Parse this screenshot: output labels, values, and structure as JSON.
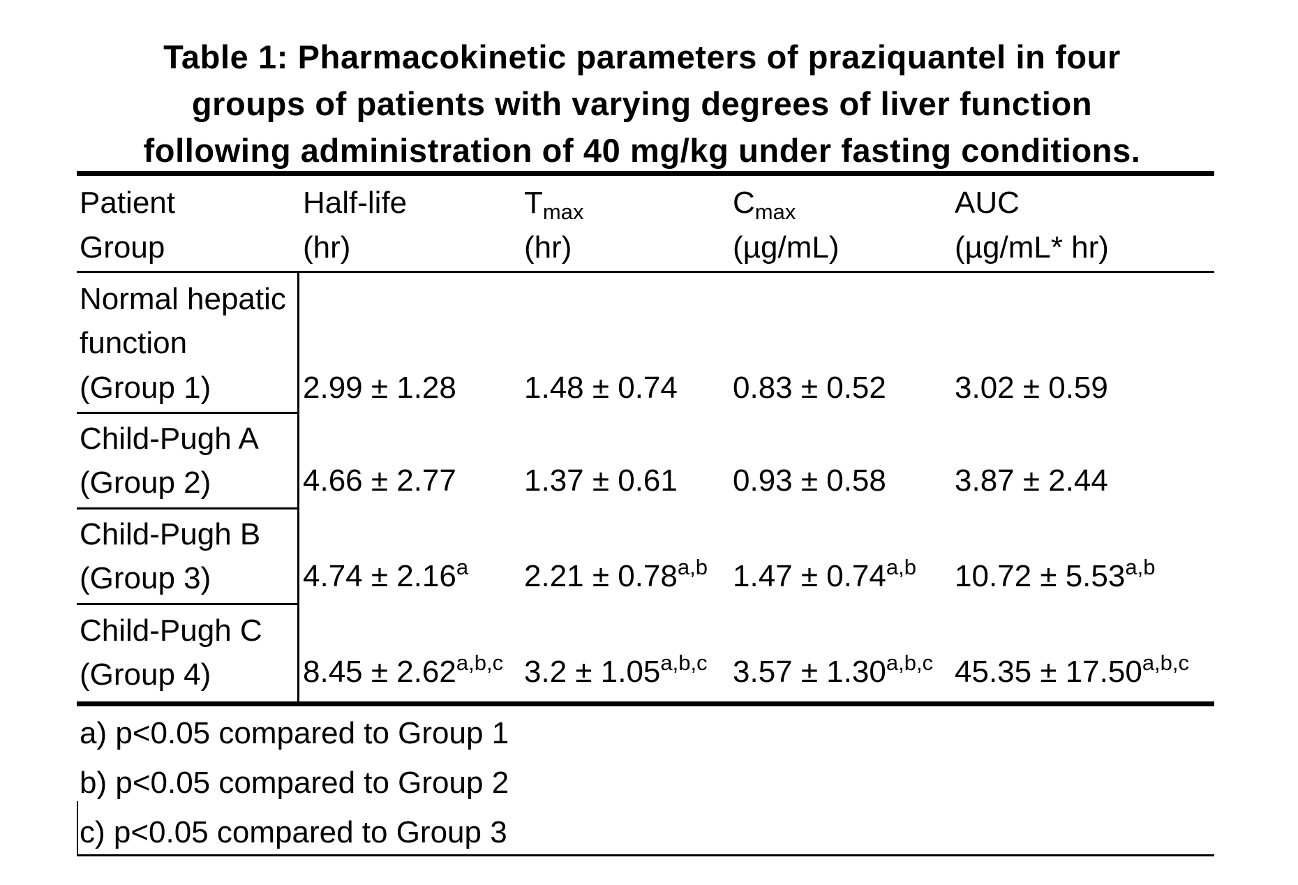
{
  "caption": {
    "lines": [
      "Table 1: Pharmacokinetic parameters of praziquantel in four",
      "groups of patients with varying degrees of liver function",
      "following administration of 40 mg/kg under fasting conditions."
    ]
  },
  "header": {
    "group": {
      "line1": "Patient",
      "line2": "Group"
    },
    "half_life": {
      "line1": "Half-life",
      "line2": "(hr)"
    },
    "tmax": {
      "base": "T",
      "sub": "max",
      "unit": "(hr)"
    },
    "cmax": {
      "base": "C",
      "sub": "max",
      "unit": "(µg/mL)"
    },
    "auc": {
      "line1": "AUC",
      "line2": "(µg/mL* hr)"
    }
  },
  "rows": [
    {
      "label_lines": [
        "Normal hepatic",
        "function",
        "(Group 1)"
      ],
      "half_life": "2.99 ± 1.28",
      "half_life_sup": "",
      "tmax": "1.48 ± 0.74",
      "tmax_sup": "",
      "cmax": "0.83 ± 0.52",
      "cmax_sup": "",
      "auc": "3.02 ± 0.59",
      "auc_sup": ""
    },
    {
      "label_lines": [
        "Child-Pugh A",
        "(Group 2)"
      ],
      "half_life": "4.66 ± 2.77",
      "half_life_sup": "",
      "tmax": "1.37 ± 0.61",
      "tmax_sup": "",
      "cmax": "0.93 ± 0.58",
      "cmax_sup": "",
      "auc": "3.87 ± 2.44",
      "auc_sup": ""
    },
    {
      "label_lines": [
        "Child-Pugh B",
        "(Group 3)"
      ],
      "half_life": "4.74 ± 2.16",
      "half_life_sup": "a",
      "tmax": "2.21 ± 0.78",
      "tmax_sup": "a,b",
      "cmax": "1.47 ± 0.74",
      "cmax_sup": "a,b",
      "auc": "10.72 ± 5.53",
      "auc_sup": "a,b"
    },
    {
      "label_lines": [
        "Child-Pugh C",
        "(Group 4)"
      ],
      "half_life": "8.45 ± 2.62",
      "half_life_sup": "a,b,c",
      "tmax": "3.2 ± 1.05",
      "tmax_sup": "a,b,c",
      "cmax": "3.57 ± 1.30",
      "cmax_sup": "a,b,c",
      "auc": "45.35 ± 17.50",
      "auc_sup": "a,b,c"
    }
  ],
  "footnotes": [
    "a) p<0.05 compared to Group 1",
    "b) p<0.05 compared to Group 2",
    "c) p<0.05 compared to Group 3"
  ]
}
